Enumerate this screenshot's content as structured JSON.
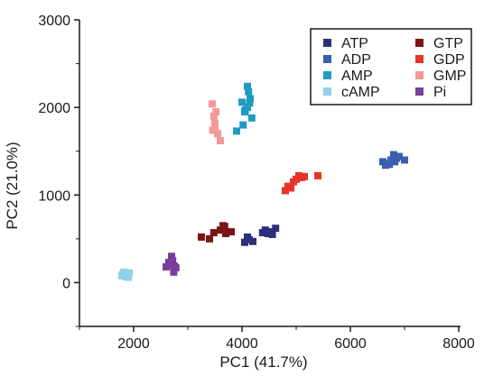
{
  "chart_data": {
    "type": "scatter",
    "title": "",
    "xlabel": "PC1 (41.7%)",
    "ylabel": "PC2 (21.0%)",
    "xlim": [
      1000,
      8000
    ],
    "ylim": [
      -500,
      3000
    ],
    "x_ticks": [
      2000,
      4000,
      6000,
      8000
    ],
    "y_ticks": [
      0,
      1000,
      2000,
      3000
    ],
    "grid": false,
    "legend_position": "top-right",
    "series": [
      {
        "name": "ATP",
        "color": "#2c2f7a",
        "x": [
          4050,
          4130,
          4200,
          4380,
          4480,
          4560,
          4620,
          4430,
          4100,
          4550
        ],
        "y": [
          460,
          490,
          470,
          570,
          560,
          550,
          620,
          600,
          520,
          580
        ]
      },
      {
        "name": "ADP",
        "color": "#3a5fae",
        "x": [
          6600,
          6650,
          6700,
          6750,
          6800,
          6850,
          6900,
          7000,
          6820,
          6720
        ],
        "y": [
          1380,
          1340,
          1360,
          1400,
          1460,
          1420,
          1440,
          1400,
          1380,
          1350
        ]
      },
      {
        "name": "AMP",
        "color": "#1f9bc2",
        "x": [
          3900,
          4000,
          4050,
          4100,
          4120,
          4150,
          4180,
          4060,
          4100,
          4140,
          4020
        ],
        "y": [
          1730,
          2060,
          1950,
          2240,
          2180,
          2100,
          1880,
          1970,
          2000,
          2050,
          1800
        ]
      },
      {
        "name": "cAMP",
        "color": "#8fd2e8",
        "x": [
          1780,
          1820,
          1850,
          1880,
          1900,
          1920,
          1800,
          1860
        ],
        "y": [
          80,
          120,
          70,
          100,
          60,
          110,
          95,
          85
        ]
      },
      {
        "name": "GTP",
        "color": "#7a1416",
        "x": [
          3250,
          3400,
          3480,
          3600,
          3650,
          3700,
          3800,
          3680
        ],
        "y": [
          520,
          500,
          570,
          600,
          650,
          560,
          580,
          640
        ]
      },
      {
        "name": "GDP",
        "color": "#e8332b",
        "x": [
          4800,
          4850,
          4900,
          5000,
          5050,
          5100,
          5150,
          5400,
          4950
        ],
        "y": [
          1050,
          1100,
          1080,
          1180,
          1220,
          1200,
          1210,
          1220,
          1150
        ]
      },
      {
        "name": "GMP",
        "color": "#f29a9a",
        "x": [
          3450,
          3480,
          3500,
          3520,
          3550,
          3600,
          3460,
          3500
        ],
        "y": [
          2040,
          1900,
          1780,
          1950,
          1700,
          1620,
          1740,
          1820
        ]
      },
      {
        "name": "Pi",
        "color": "#7b3d9e",
        "x": [
          2600,
          2650,
          2700,
          2720,
          2750,
          2780,
          2680,
          2740,
          2700,
          2660
        ],
        "y": [
          180,
          230,
          300,
          250,
          190,
          170,
          220,
          120,
          260,
          200
        ]
      }
    ]
  }
}
